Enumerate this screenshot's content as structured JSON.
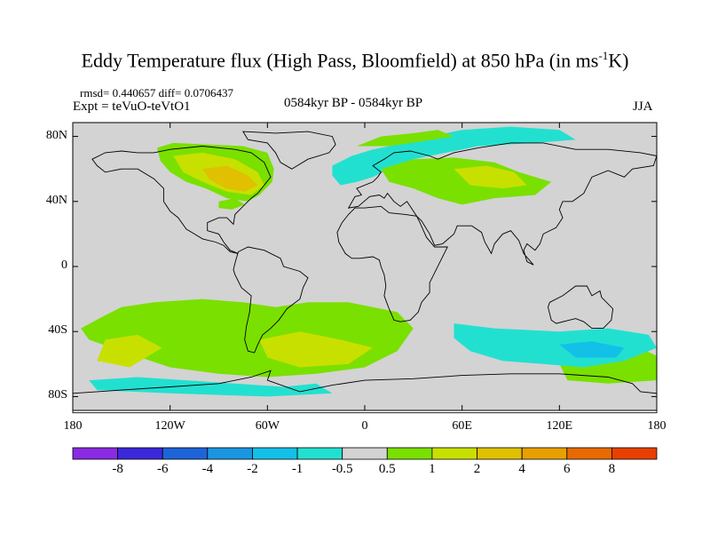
{
  "title": {
    "main": "Eddy Temperature flux (High Pass, Bloomfield) at 850 hPa (in ms",
    "sup": "-1",
    "tail": "K)"
  },
  "stats": "rmsd= 0.440657 diff= 0.0706437",
  "expt": "Expt = teVuO-teVtO1",
  "period": "0584kyr BP - 0584kyr BP",
  "season": "JJA",
  "map": {
    "background_color": "#d3d3d3",
    "lat_labels": [
      "80N",
      "40N",
      "0",
      "40S",
      "80S"
    ],
    "lat_values": [
      80,
      40,
      0,
      -40,
      -80
    ],
    "lon_labels": [
      "180",
      "120W",
      "60W",
      "0",
      "60E",
      "120E",
      "180"
    ],
    "lon_values": [
      -180,
      -120,
      -60,
      0,
      60,
      120,
      180
    ]
  },
  "colorbar": {
    "colors": [
      "#8a2be2",
      "#3c28d8",
      "#1e64d8",
      "#1a96e0",
      "#13c0e8",
      "#22e0d0",
      "#d3d3d3",
      "#7ae000",
      "#c8e000",
      "#e0c000",
      "#e8a000",
      "#e86a00",
      "#e84000"
    ],
    "labels": [
      "-8",
      "-6",
      "-4",
      "-2",
      "-1",
      "-0.5",
      "0.5",
      "1",
      "2",
      "4",
      "6",
      "8"
    ]
  },
  "regions": [
    {
      "color": "#7ae000",
      "pts": [
        [
          -128,
          73
        ],
        [
          -118,
          76
        ],
        [
          -95,
          75
        ],
        [
          -75,
          74
        ],
        [
          -60,
          70
        ],
        [
          -56,
          60
        ],
        [
          -57,
          52
        ],
        [
          -65,
          44
        ],
        [
          -72,
          40
        ],
        [
          -85,
          42
        ],
        [
          -98,
          48
        ],
        [
          -110,
          52
        ],
        [
          -120,
          58
        ],
        [
          -126,
          65
        ]
      ]
    },
    {
      "color": "#c8e000",
      "pts": [
        [
          -118,
          68
        ],
        [
          -100,
          70
        ],
        [
          -80,
          66
        ],
        [
          -66,
          58
        ],
        [
          -62,
          50
        ],
        [
          -70,
          44
        ],
        [
          -85,
          46
        ],
        [
          -100,
          52
        ],
        [
          -112,
          58
        ]
      ]
    },
    {
      "color": "#e0c000",
      "pts": [
        [
          -100,
          60
        ],
        [
          -85,
          62
        ],
        [
          -72,
          56
        ],
        [
          -66,
          50
        ],
        [
          -74,
          46
        ],
        [
          -86,
          48
        ],
        [
          -96,
          54
        ]
      ]
    },
    {
      "color": "#7ae000",
      "pts": [
        [
          -90,
          40
        ],
        [
          -80,
          42
        ],
        [
          -74,
          38
        ],
        [
          -82,
          35
        ],
        [
          -90,
          36
        ]
      ]
    },
    {
      "color": "#22e0d0",
      "pts": [
        [
          -20,
          62
        ],
        [
          -8,
          68
        ],
        [
          5,
          72
        ],
        [
          20,
          75
        ],
        [
          40,
          80
        ],
        [
          60,
          84
        ],
        [
          90,
          86
        ],
        [
          120,
          84
        ],
        [
          130,
          78
        ],
        [
          105,
          76
        ],
        [
          70,
          74
        ],
        [
          50,
          70
        ],
        [
          30,
          66
        ],
        [
          15,
          60
        ],
        [
          5,
          55
        ],
        [
          -5,
          52
        ],
        [
          -15,
          50
        ],
        [
          -20,
          56
        ]
      ]
    },
    {
      "color": "#7ae000",
      "pts": [
        [
          -5,
          74
        ],
        [
          10,
          80
        ],
        [
          30,
          82
        ],
        [
          45,
          84
        ],
        [
          55,
          80
        ],
        [
          35,
          77
        ],
        [
          15,
          74
        ]
      ]
    },
    {
      "color": "#7ae000",
      "pts": [
        [
          10,
          60
        ],
        [
          30,
          66
        ],
        [
          55,
          67
        ],
        [
          80,
          64
        ],
        [
          95,
          58
        ],
        [
          115,
          52
        ],
        [
          105,
          44
        ],
        [
          80,
          42
        ],
        [
          60,
          38
        ],
        [
          45,
          42
        ],
        [
          30,
          48
        ],
        [
          15,
          52
        ]
      ]
    },
    {
      "color": "#c8e000",
      "pts": [
        [
          55,
          60
        ],
        [
          75,
          62
        ],
        [
          92,
          58
        ],
        [
          100,
          50
        ],
        [
          85,
          48
        ],
        [
          65,
          50
        ]
      ]
    },
    {
      "color": "#7ae000",
      "pts": [
        [
          -150,
          -25
        ],
        [
          -130,
          -22
        ],
        [
          -100,
          -20
        ],
        [
          -75,
          -22
        ],
        [
          -55,
          -25
        ],
        [
          -35,
          -22
        ],
        [
          -10,
          -22
        ],
        [
          20,
          -28
        ],
        [
          30,
          -38
        ],
        [
          20,
          -52
        ],
        [
          0,
          -62
        ],
        [
          -30,
          -66
        ],
        [
          -60,
          -68
        ],
        [
          -90,
          -66
        ],
        [
          -120,
          -62
        ],
        [
          -150,
          -52
        ],
        [
          -170,
          -45
        ],
        [
          -175,
          -38
        ],
        [
          -160,
          -30
        ]
      ]
    },
    {
      "color": "#c8e000",
      "pts": [
        [
          -160,
          -45
        ],
        [
          -140,
          -42
        ],
        [
          -125,
          -50
        ],
        [
          -145,
          -62
        ],
        [
          -165,
          -58
        ]
      ]
    },
    {
      "color": "#c8e000",
      "pts": [
        [
          -65,
          -45
        ],
        [
          -40,
          -40
        ],
        [
          -15,
          -45
        ],
        [
          5,
          -50
        ],
        [
          -10,
          -60
        ],
        [
          -40,
          -62
        ],
        [
          -60,
          -56
        ]
      ]
    },
    {
      "color": "#7ae000",
      "pts": [
        [
          120,
          -60
        ],
        [
          145,
          -55
        ],
        [
          170,
          -50
        ],
        [
          180,
          -55
        ],
        [
          180,
          -70
        ],
        [
          150,
          -72
        ],
        [
          125,
          -70
        ]
      ]
    },
    {
      "color": "#22e0d0",
      "pts": [
        [
          55,
          -35
        ],
        [
          80,
          -38
        ],
        [
          120,
          -40
        ],
        [
          150,
          -38
        ],
        [
          175,
          -42
        ],
        [
          180,
          -50
        ],
        [
          160,
          -58
        ],
        [
          135,
          -62
        ],
        [
          110,
          -60
        ],
        [
          85,
          -58
        ],
        [
          65,
          -52
        ],
        [
          55,
          -44
        ]
      ]
    },
    {
      "color": "#13c0e8",
      "pts": [
        [
          120,
          -48
        ],
        [
          140,
          -46
        ],
        [
          160,
          -50
        ],
        [
          155,
          -56
        ],
        [
          130,
          -56
        ]
      ]
    },
    {
      "color": "#22e0d0",
      "pts": [
        [
          -170,
          -70
        ],
        [
          -140,
          -68
        ],
        [
          -110,
          -70
        ],
        [
          -80,
          -72
        ],
        [
          -50,
          -74
        ],
        [
          -30,
          -72
        ],
        [
          -20,
          -78
        ],
        [
          -60,
          -80
        ],
        [
          -120,
          -78
        ],
        [
          -165,
          -76
        ]
      ]
    }
  ],
  "land": [
    [
      [
        -168,
        66
      ],
      [
        -160,
        70
      ],
      [
        -150,
        71
      ],
      [
        -140,
        70
      ],
      [
        -130,
        70
      ],
      [
        -120,
        72
      ],
      [
        -100,
        74
      ],
      [
        -80,
        72
      ],
      [
        -70,
        70
      ],
      [
        -62,
        64
      ],
      [
        -58,
        55
      ],
      [
        -66,
        45
      ],
      [
        -70,
        42
      ],
      [
        -76,
        36
      ],
      [
        -80,
        32
      ],
      [
        -81,
        26
      ],
      [
        -85,
        30
      ],
      [
        -90,
        30
      ],
      [
        -97,
        27
      ],
      [
        -97,
        22
      ],
      [
        -90,
        20
      ],
      [
        -87,
        15
      ],
      [
        -83,
        10
      ],
      [
        -78,
        8
      ],
      [
        -83,
        9
      ],
      [
        -87,
        13
      ],
      [
        -92,
        15
      ],
      [
        -100,
        17
      ],
      [
        -105,
        20
      ],
      [
        -110,
        23
      ],
      [
        -115,
        30
      ],
      [
        -120,
        34
      ],
      [
        -124,
        40
      ],
      [
        -124,
        48
      ],
      [
        -130,
        54
      ],
      [
        -140,
        60
      ],
      [
        -150,
        60
      ],
      [
        -160,
        58
      ],
      [
        -165,
        62
      ]
    ],
    [
      [
        -75,
        83
      ],
      [
        -55,
        82
      ],
      [
        -35,
        83
      ],
      [
        -20,
        80
      ],
      [
        -18,
        75
      ],
      [
        -22,
        70
      ],
      [
        -35,
        66
      ],
      [
        -45,
        60
      ],
      [
        -52,
        64
      ],
      [
        -55,
        70
      ],
      [
        -60,
        76
      ],
      [
        -72,
        78
      ]
    ],
    [
      [
        -78,
        9
      ],
      [
        -72,
        12
      ],
      [
        -62,
        10
      ],
      [
        -52,
        5
      ],
      [
        -50,
        0
      ],
      [
        -40,
        -3
      ],
      [
        -35,
        -7
      ],
      [
        -38,
        -13
      ],
      [
        -40,
        -20
      ],
      [
        -48,
        -26
      ],
      [
        -53,
        -33
      ],
      [
        -58,
        -38
      ],
      [
        -63,
        -42
      ],
      [
        -66,
        -48
      ],
      [
        -68,
        -53
      ],
      [
        -72,
        -52
      ],
      [
        -74,
        -45
      ],
      [
        -73,
        -37
      ],
      [
        -71,
        -28
      ],
      [
        -70,
        -18
      ],
      [
        -76,
        -13
      ],
      [
        -80,
        -5
      ],
      [
        -81,
        -2
      ],
      [
        -80,
        2
      ]
    ],
    [
      [
        -10,
        36
      ],
      [
        -6,
        43
      ],
      [
        -2,
        44
      ],
      [
        -5,
        48
      ],
      [
        5,
        52
      ],
      [
        8,
        55
      ],
      [
        10,
        58
      ],
      [
        5,
        62
      ],
      [
        12,
        66
      ],
      [
        18,
        70
      ],
      [
        28,
        71
      ],
      [
        40,
        68
      ],
      [
        45,
        66
      ],
      [
        55,
        70
      ],
      [
        70,
        73
      ],
      [
        90,
        76
      ],
      [
        110,
        76
      ],
      [
        130,
        72
      ],
      [
        150,
        72
      ],
      [
        170,
        70
      ],
      [
        180,
        68
      ],
      [
        178,
        62
      ],
      [
        165,
        60
      ],
      [
        160,
        55
      ],
      [
        150,
        59
      ],
      [
        140,
        55
      ],
      [
        135,
        45
      ],
      [
        128,
        40
      ],
      [
        122,
        40
      ],
      [
        120,
        35
      ],
      [
        122,
        30
      ],
      [
        118,
        24
      ],
      [
        110,
        20
      ],
      [
        108,
        14
      ],
      [
        105,
        10
      ],
      [
        100,
        14
      ],
      [
        98,
        10
      ],
      [
        100,
        3
      ],
      [
        104,
        1
      ],
      [
        98,
        8
      ],
      [
        95,
        16
      ],
      [
        90,
        22
      ],
      [
        85,
        20
      ],
      [
        80,
        14
      ],
      [
        78,
        8
      ],
      [
        74,
        15
      ],
      [
        72,
        21
      ],
      [
        66,
        25
      ],
      [
        57,
        25
      ],
      [
        55,
        20
      ],
      [
        48,
        14
      ],
      [
        43,
        13
      ],
      [
        40,
        20
      ],
      [
        35,
        28
      ],
      [
        32,
        31
      ],
      [
        28,
        37
      ],
      [
        26,
        40
      ],
      [
        22,
        37
      ],
      [
        18,
        40
      ],
      [
        14,
        45
      ],
      [
        12,
        42
      ],
      [
        9,
        44
      ],
      [
        3,
        43
      ],
      [
        -4,
        37
      ]
    ],
    [
      [
        -17,
        21
      ],
      [
        -16,
        15
      ],
      [
        -12,
        8
      ],
      [
        -8,
        5
      ],
      [
        -3,
        5
      ],
      [
        5,
        6
      ],
      [
        9,
        4
      ],
      [
        10,
        0
      ],
      [
        12,
        -5
      ],
      [
        13,
        -12
      ],
      [
        12,
        -18
      ],
      [
        15,
        -26
      ],
      [
        18,
        -33
      ],
      [
        22,
        -34
      ],
      [
        28,
        -33
      ],
      [
        33,
        -28
      ],
      [
        35,
        -22
      ],
      [
        40,
        -16
      ],
      [
        40,
        -10
      ],
      [
        44,
        -2
      ],
      [
        51,
        12
      ],
      [
        43,
        12
      ],
      [
        38,
        18
      ],
      [
        34,
        27
      ],
      [
        32,
        31
      ],
      [
        25,
        32
      ],
      [
        15,
        33
      ],
      [
        10,
        37
      ],
      [
        0,
        36
      ],
      [
        -6,
        36
      ],
      [
        -10,
        32
      ],
      [
        -14,
        27
      ]
    ],
    [
      [
        114,
        -22
      ],
      [
        122,
        -18
      ],
      [
        130,
        -12
      ],
      [
        137,
        -12
      ],
      [
        140,
        -18
      ],
      [
        145,
        -15
      ],
      [
        146,
        -19
      ],
      [
        153,
        -26
      ],
      [
        152,
        -33
      ],
      [
        147,
        -38
      ],
      [
        140,
        -38
      ],
      [
        135,
        -34
      ],
      [
        130,
        -32
      ],
      [
        118,
        -35
      ],
      [
        115,
        -33
      ],
      [
        113,
        -25
      ]
    ],
    [
      [
        -180,
        -78
      ],
      [
        -150,
        -76
      ],
      [
        -120,
        -74
      ],
      [
        -90,
        -72
      ],
      [
        -70,
        -68
      ],
      [
        -58,
        -64
      ],
      [
        -60,
        -70
      ],
      [
        -40,
        -77
      ],
      [
        -20,
        -73
      ],
      [
        0,
        -70
      ],
      [
        30,
        -69
      ],
      [
        60,
        -67
      ],
      [
        90,
        -66
      ],
      [
        120,
        -66
      ],
      [
        150,
        -68
      ],
      [
        165,
        -72
      ],
      [
        170,
        -77
      ],
      [
        180,
        -78
      ],
      [
        180,
        -90
      ],
      [
        -180,
        -90
      ]
    ]
  ]
}
